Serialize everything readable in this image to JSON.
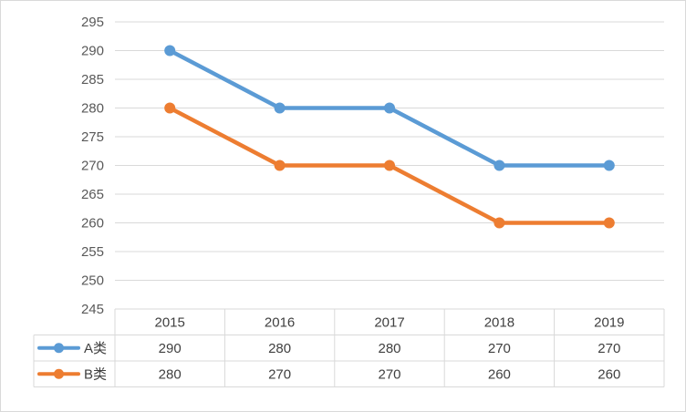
{
  "chart_data": {
    "type": "line",
    "title": "",
    "xlabel": "",
    "ylabel": "",
    "categories": [
      "2015",
      "2016",
      "2017",
      "2018",
      "2019"
    ],
    "ylim": [
      245,
      295
    ],
    "ytick_step": 5,
    "grid": true,
    "legend": "data-table-left",
    "series": [
      {
        "name": "A类",
        "values": [
          290,
          280,
          280,
          270,
          270
        ],
        "color": "#5b9bd5"
      },
      {
        "name": "B类",
        "values": [
          280,
          270,
          270,
          260,
          260
        ],
        "color": "#ed7d31"
      }
    ]
  },
  "colors": {
    "gridline": "#d9d9d9",
    "text": "#595959"
  }
}
